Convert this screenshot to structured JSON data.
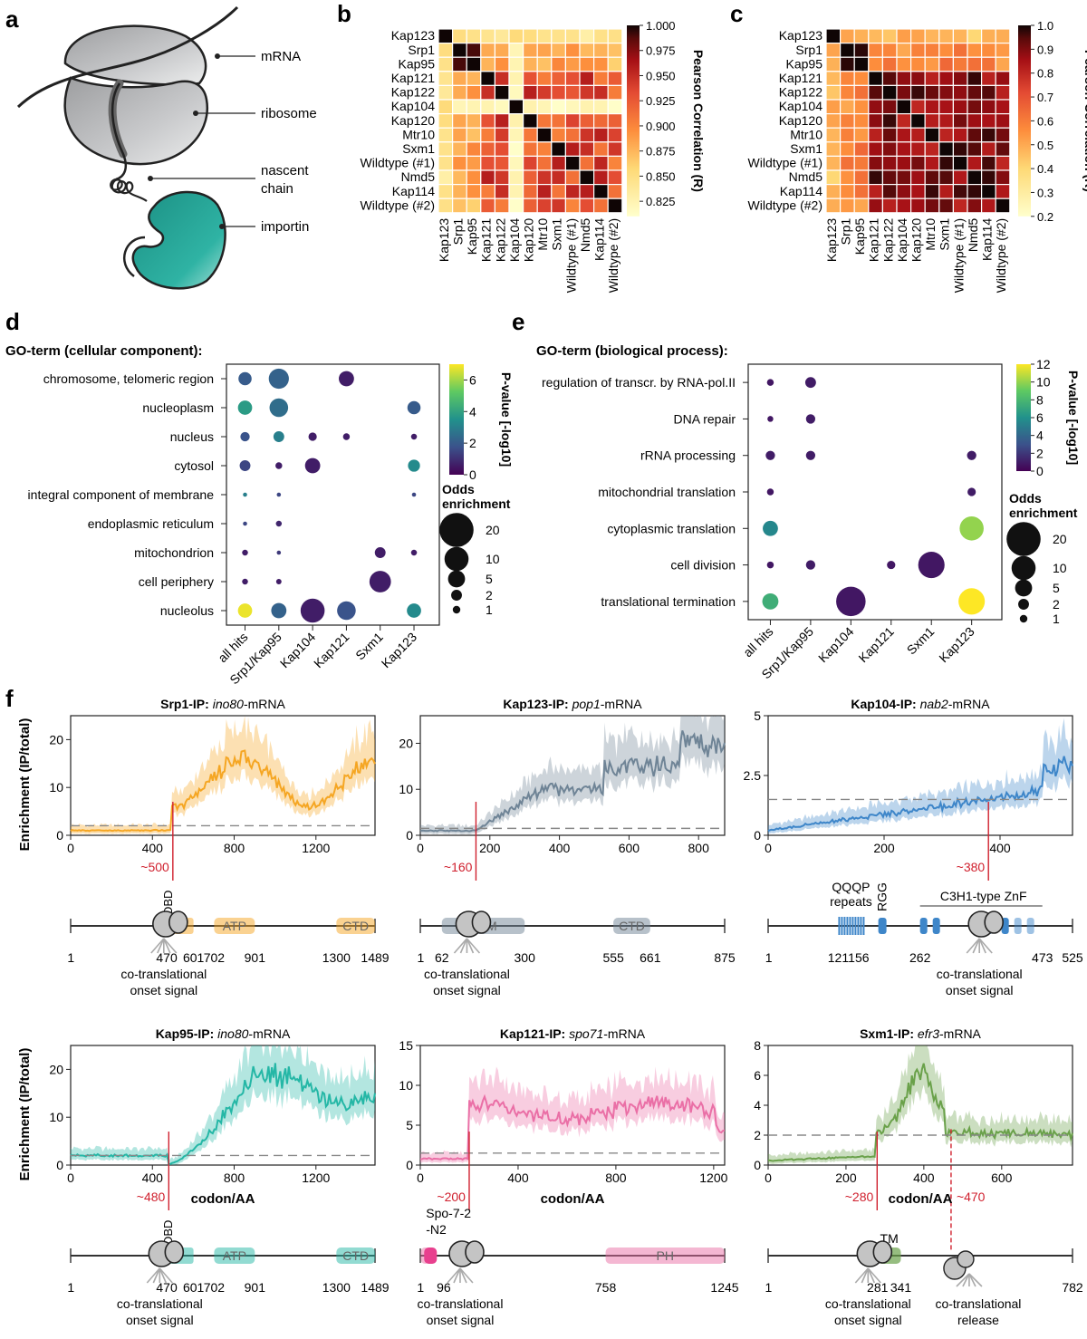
{
  "panel_labels": {
    "a": "a",
    "b": "b",
    "c": "c",
    "d": "d",
    "e": "e",
    "f": "f"
  },
  "panel_a": {
    "labels": [
      "mRNA",
      "ribosome",
      "nascent\nchain",
      "importin"
    ],
    "colors": {
      "ribosome": "#b8b9bb",
      "importin": "#27a396"
    }
  },
  "heatmap_rows": [
    "Kap123",
    "Srp1",
    "Kap95",
    "Kap121",
    "Kap122",
    "Kap104",
    "Kap120",
    "Mtr10",
    "Sxm1",
    "Wildtype (#1)",
    "Nmd5",
    "Kap114",
    "Wildtype (#2)"
  ],
  "panel_b": {
    "colorbar_title": "Pearson Correlation (R)",
    "colorbar_ticks": [
      "1.000",
      "0.975",
      "0.950",
      "0.925",
      "0.900",
      "0.875",
      "0.850",
      "0.825"
    ],
    "vmin": 0.81,
    "vmax": 1.0
  },
  "panel_c": {
    "colorbar_title": "Pearson Correlation (R)",
    "colorbar_ticks": [
      "1.0",
      "0.9",
      "0.8",
      "0.7",
      "0.6",
      "0.5",
      "0.4",
      "0.3",
      "0.2"
    ],
    "vmin": 0.2,
    "vmax": 1.0
  },
  "panel_d": {
    "title": "GO-term (cellular component):",
    "rows": [
      "chromosome, telomeric region",
      "nucleoplasm",
      "nucleus",
      "cytosol",
      "integral component of membrane",
      "endoplasmic reticulum",
      "mitochondrion",
      "cell periphery",
      "nucleolus"
    ],
    "cols": [
      "all hits",
      "Srp1/Kap95",
      "Kap104",
      "Kap121",
      "Sxm1",
      "Kap123"
    ],
    "colorbar_title": "P-value [-log10]",
    "colorbar_ticks": [
      "6",
      "4",
      "2",
      "0"
    ],
    "size_title": "Odds\nenrichment",
    "size_ticks": [
      "20",
      "10",
      "5",
      "2",
      "1"
    ]
  },
  "panel_e": {
    "title": "GO-term (biological process):",
    "rows": [
      "regulation of transcr. by RNA-pol.II",
      "DNA repair",
      "rRNA processing",
      "mitochondrial translation",
      "cytoplasmic translation",
      "cell division",
      "translational termination"
    ],
    "cols": [
      "all hits",
      "Srp1/Kap95",
      "Kap104",
      "Kap121",
      "Sxm1",
      "Kap123"
    ],
    "colorbar_title": "P-value [-log10]",
    "colorbar_ticks": [
      "12",
      "10",
      "8",
      "6",
      "4",
      "2",
      "0"
    ],
    "size_title": "Odds\nenrichment",
    "size_ticks": [
      "20",
      "10",
      "5",
      "2",
      "1"
    ]
  },
  "panel_f": {
    "ylabel": "Enrichment (IP/total)",
    "xlabel": "codon/AA",
    "onset_label": "co-translational\nonset signal",
    "release_label": "co-translational\nrelease",
    "plots": [
      {
        "title_bold": "Srp1-IP:",
        "gene": "ino80",
        "suffix": "-mRNA",
        "color": "#f5a623",
        "xticks": [
          "0",
          "400",
          "800",
          "1200"
        ],
        "yticks": [
          "0",
          "10",
          "20"
        ],
        "marker": "~500",
        "domains": [
          {
            "name": "DBD"
          },
          {
            "name": "ATP"
          },
          {
            "name": "CTD"
          }
        ],
        "pos_labels": [
          "1",
          "470",
          "601",
          "702",
          "901",
          "1300",
          "1489"
        ]
      },
      {
        "title_bold": "Kap123-IP:",
        "gene": "pop1",
        "suffix": "-mRNA",
        "color": "#6f8496",
        "xticks": [
          "0",
          "200",
          "400",
          "600",
          "800"
        ],
        "yticks": [
          "0",
          "10",
          "20"
        ],
        "marker": "~160",
        "domains": [
          {
            "name": "NTM"
          },
          {
            "name": "CTD"
          }
        ],
        "pos_labels": [
          "1",
          "62",
          "300",
          "555",
          "661",
          "875"
        ]
      },
      {
        "title_bold": "Kap104-IP:",
        "gene": "nab2",
        "suffix": "-mRNA",
        "color": "#3e86c9",
        "xticks": [
          "0",
          "200",
          "400"
        ],
        "yticks": [
          "0",
          "2.5",
          "5"
        ],
        "marker": "~380",
        "domains": [
          {
            "name": "QQQP\nrepeats"
          },
          {
            "name": "RGG"
          },
          {
            "name": "C3H1-type ZnF"
          }
        ],
        "pos_labels": [
          "1",
          "121",
          "156",
          "262",
          "473",
          "525"
        ]
      },
      {
        "title_bold": "Kap95-IP:",
        "gene": "ino80",
        "suffix": "-mRNA",
        "color": "#25b7a6",
        "xticks": [
          "0",
          "400",
          "800",
          "1200"
        ],
        "yticks": [
          "0",
          "10",
          "20"
        ],
        "marker": "~480",
        "domains": [
          {
            "name": "DBD"
          },
          {
            "name": "ATP"
          },
          {
            "name": "CTD"
          }
        ],
        "pos_labels": [
          "1",
          "470",
          "601",
          "702",
          "901",
          "1300",
          "1489"
        ]
      },
      {
        "title_bold": "Kap121-IP:",
        "gene": "spo71",
        "suffix": "-mRNA",
        "color": "#ea6fa6",
        "xticks": [
          "0",
          "400",
          "800",
          "1200"
        ],
        "yticks": [
          "0",
          "5",
          "10",
          "15"
        ],
        "marker": "~200",
        "domains": [
          {
            "name": "Spo-7-2\n-N2"
          },
          {
            "name": "PH"
          }
        ],
        "pos_labels": [
          "1",
          "96",
          "758",
          "1245"
        ]
      },
      {
        "title_bold": "Sxm1-IP:",
        "gene": "efr3",
        "suffix": "-mRNA",
        "color": "#6aa14a",
        "xticks": [
          "0",
          "200",
          "400",
          "600"
        ],
        "yticks": [
          "0",
          "2",
          "4",
          "6",
          "8"
        ],
        "marker": "~280",
        "marker2": "~470",
        "domains": [
          {
            "name": "TM"
          }
        ],
        "pos_labels": [
          "1",
          "281",
          "341",
          "782"
        ]
      }
    ]
  }
}
